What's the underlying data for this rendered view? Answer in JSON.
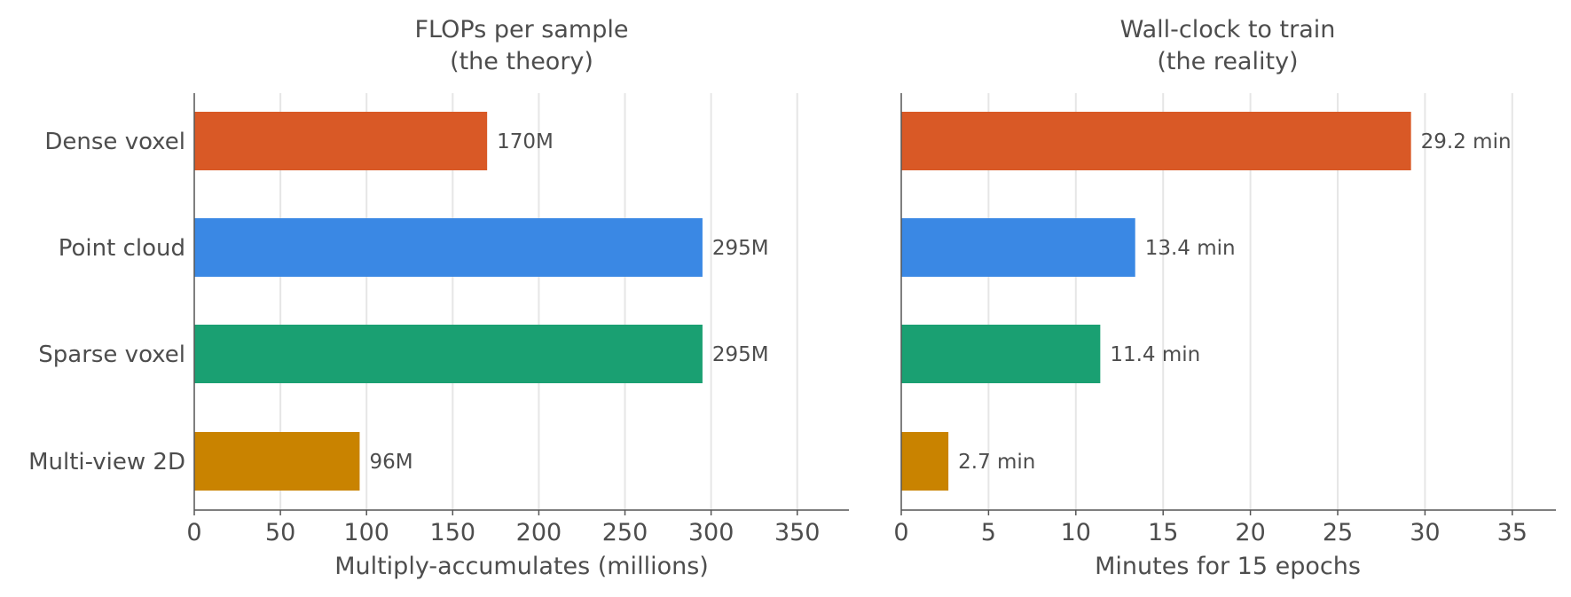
{
  "chart_data": [
    {
      "type": "bar",
      "orientation": "horizontal",
      "title": "FLOPs per sample",
      "subtitle": "(the theory)",
      "xlabel": "Multiply-accumulates (millions)",
      "ylabel": "",
      "categories": [
        "Dense voxel",
        "Point cloud",
        "Sparse voxel",
        "Multi-view 2D"
      ],
      "values": [
        170,
        295,
        295,
        96
      ],
      "value_labels": [
        "170M",
        "295M",
        "295M",
        "96M"
      ],
      "colors": [
        "#d95926",
        "#3a88e4",
        "#1aa072",
        "#c98300"
      ],
      "xlim": [
        0,
        380
      ],
      "xticks": [
        0,
        50,
        100,
        150,
        200,
        250,
        300,
        350
      ],
      "grid": "vertical"
    },
    {
      "type": "bar",
      "orientation": "horizontal",
      "title": "Wall-clock to train",
      "subtitle": "(the reality)",
      "xlabel": "Minutes for 15 epochs",
      "ylabel": "",
      "categories": [
        "Dense voxel",
        "Point cloud",
        "Sparse voxel",
        "Multi-view 2D"
      ],
      "values": [
        29.2,
        13.4,
        11.4,
        2.7
      ],
      "value_labels": [
        "29.2 min",
        "13.4 min",
        "11.4 min",
        "2.7 min"
      ],
      "colors": [
        "#d95926",
        "#3a88e4",
        "#1aa072",
        "#c98300"
      ],
      "xlim": [
        0,
        37.5
      ],
      "xticks": [
        0,
        5,
        10,
        15,
        20,
        25,
        30,
        35
      ],
      "grid": "vertical"
    }
  ]
}
